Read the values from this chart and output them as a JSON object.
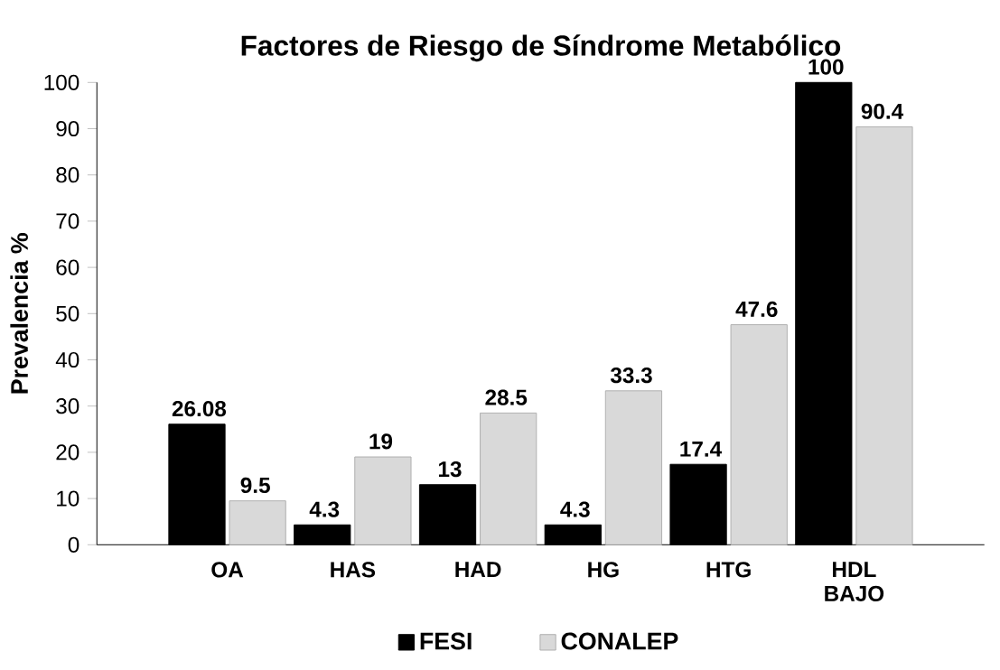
{
  "chart_data": {
    "type": "bar",
    "title": "Factores de Riesgo de Síndrome Metabólico",
    "ylabel": "Prevalencia %",
    "categories": [
      "OA",
      "HAS",
      "HAD",
      "HG",
      "HTG",
      "HDL BAJO"
    ],
    "series": [
      {
        "name": "FESI",
        "color": "#000000",
        "values": [
          26.08,
          4.3,
          13,
          4.3,
          17.4,
          100
        ]
      },
      {
        "name": "CONALEP",
        "color": "#d9d9d9",
        "values": [
          9.5,
          19,
          28.5,
          33.3,
          47.6,
          90.4
        ]
      }
    ],
    "ylim": [
      0,
      100
    ],
    "yticks": [
      0,
      10,
      20,
      30,
      40,
      50,
      60,
      70,
      80,
      90,
      100
    ],
    "data_labels": true,
    "legend": "bottom",
    "grid": false
  }
}
